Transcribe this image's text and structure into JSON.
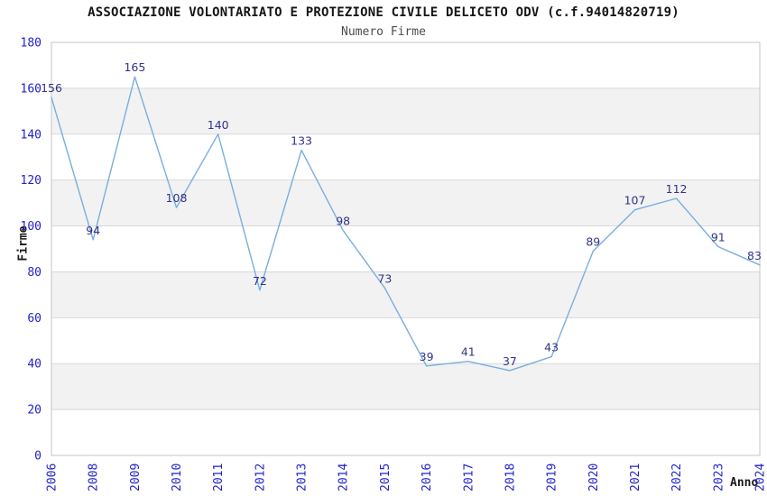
{
  "header": {
    "title": "ASSOCIAZIONE VOLONTARIATO E PROTEZIONE CIVILE DELICETO ODV (c.f.94014820719)",
    "subtitle": "Numero Firme"
  },
  "colors": {
    "line": "#78aede",
    "tick_label": "#2222cc",
    "data_label": "#333388",
    "band": "#f2f2f2",
    "gridline": "#d9d9d9",
    "plot_border": "#c6c6c6",
    "title": "#141414",
    "subtitle": "#4d4d4d",
    "axis_title": "#1a1a1a",
    "background": "#ffffff"
  },
  "chart_data": {
    "type": "line",
    "title": "ASSOCIAZIONE VOLONTARIATO E PROTEZIONE CIVILE DELICETO ODV (c.f.94014820719)",
    "subtitle": "Numero Firme",
    "xlabel": "Anno",
    "ylabel": "Firme",
    "categories": [
      "2006",
      "2008",
      "2009",
      "2010",
      "2011",
      "2012",
      "2013",
      "2014",
      "2015",
      "2016",
      "2017",
      "2018",
      "2019",
      "2020",
      "2021",
      "2022",
      "2023",
      "2024"
    ],
    "values": [
      156,
      94,
      165,
      108,
      140,
      72,
      133,
      98,
      73,
      39,
      41,
      37,
      43,
      89,
      107,
      112,
      91,
      83
    ],
    "ylim": [
      0,
      180
    ],
    "yticks": [
      0,
      20,
      40,
      60,
      80,
      100,
      120,
      140,
      160,
      180
    ],
    "ytick_step": 20,
    "grid": true,
    "banding": "alternating horizontal gray bands every 20 units starting at 20-40",
    "data_labels": true,
    "legend_position": "none"
  }
}
